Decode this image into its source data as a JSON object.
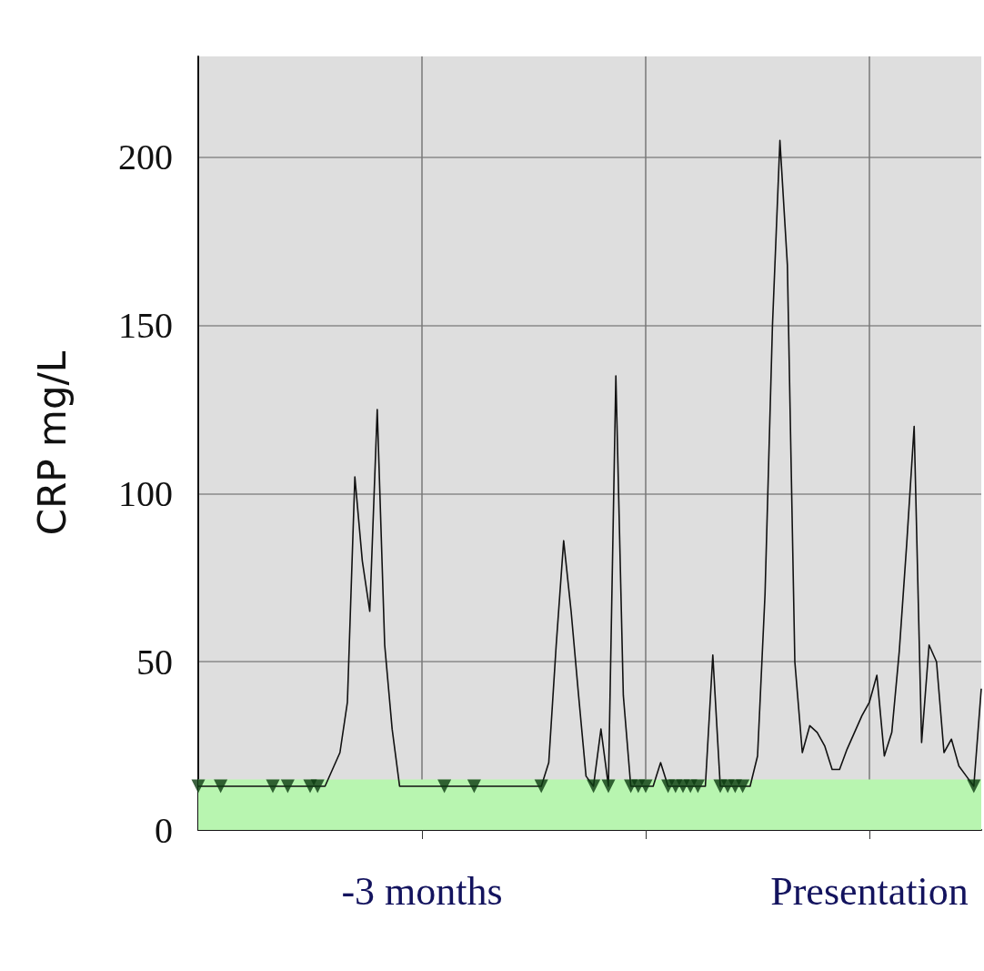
{
  "chart_data": {
    "type": "line",
    "ylabel": "CRP mg/L",
    "categories": [
      null,
      null,
      null,
      null,
      null,
      null,
      null,
      null,
      null,
      null,
      null,
      null,
      null,
      null,
      null,
      null,
      null,
      null,
      null,
      null,
      null,
      null,
      null,
      null,
      null,
      null,
      null,
      null,
      null,
      null,
      "-3 months",
      null,
      null,
      null,
      null,
      null,
      null,
      null,
      null,
      null,
      null,
      null,
      null,
      null,
      null,
      null,
      null,
      null,
      null,
      null,
      null,
      null,
      null,
      null,
      null,
      null,
      null,
      null,
      null,
      null,
      null,
      null,
      null,
      null,
      null,
      null,
      null,
      null,
      null,
      null,
      null,
      null,
      null,
      null,
      null,
      null,
      null,
      null,
      null,
      null,
      null,
      null,
      null,
      null,
      null,
      null,
      null,
      null,
      null,
      null,
      "Presentation",
      null,
      null,
      null,
      null,
      null,
      null,
      null,
      null,
      null,
      null,
      null,
      null,
      null,
      null,
      null
    ],
    "ylim": [
      0,
      230
    ],
    "yticks": [
      0,
      50,
      100,
      150,
      200
    ],
    "grid": true,
    "bands": [
      {
        "axis": "y",
        "from": 0,
        "to": 15,
        "color": "#b8f5b0"
      }
    ],
    "series": [
      {
        "color": "#111111",
        "marker": "none",
        "line_style": "solid",
        "values": [
          13,
          13,
          13,
          13,
          13,
          13,
          13,
          13,
          13,
          13,
          13,
          13,
          13,
          13,
          13,
          13,
          13,
          13,
          18,
          23,
          38,
          105,
          80,
          65,
          125,
          55,
          30,
          13,
          13,
          13,
          13,
          13,
          13,
          13,
          13,
          13,
          13,
          13,
          13,
          13,
          13,
          13,
          13,
          13,
          13,
          13,
          13,
          20,
          55,
          86,
          65,
          40,
          16,
          13,
          30,
          13,
          135,
          40,
          13,
          13,
          13,
          13,
          20,
          13,
          13,
          13,
          13,
          13,
          13,
          52,
          13,
          13,
          13,
          13,
          13,
          22,
          70,
          150,
          205,
          168,
          50,
          23,
          31,
          29,
          25,
          18,
          18,
          24,
          29,
          34,
          38,
          46,
          22,
          29,
          53,
          85,
          120,
          26,
          55,
          50,
          23,
          27,
          19,
          16,
          13,
          42
        ]
      },
      {
        "type": "scatter",
        "color": "#0d3b12",
        "marker": "triangle",
        "values": [
          13,
          null,
          null,
          13,
          null,
          null,
          null,
          null,
          null,
          null,
          13,
          null,
          13,
          null,
          null,
          13,
          13,
          null,
          null,
          null,
          null,
          null,
          null,
          null,
          null,
          null,
          null,
          null,
          null,
          null,
          null,
          null,
          null,
          13,
          null,
          null,
          null,
          13,
          null,
          null,
          null,
          null,
          null,
          null,
          null,
          null,
          13,
          null,
          null,
          null,
          null,
          null,
          null,
          13,
          null,
          13,
          null,
          null,
          13,
          13,
          13,
          null,
          null,
          13,
          13,
          13,
          13,
          13,
          null,
          null,
          13,
          13,
          13,
          13,
          null,
          null,
          null,
          null,
          null,
          null,
          null,
          null,
          null,
          null,
          null,
          null,
          null,
          null,
          null,
          null,
          null,
          null,
          null,
          null,
          null,
          null,
          null,
          null,
          null,
          null,
          null,
          null,
          null,
          null,
          13,
          null
        ]
      }
    ]
  }
}
